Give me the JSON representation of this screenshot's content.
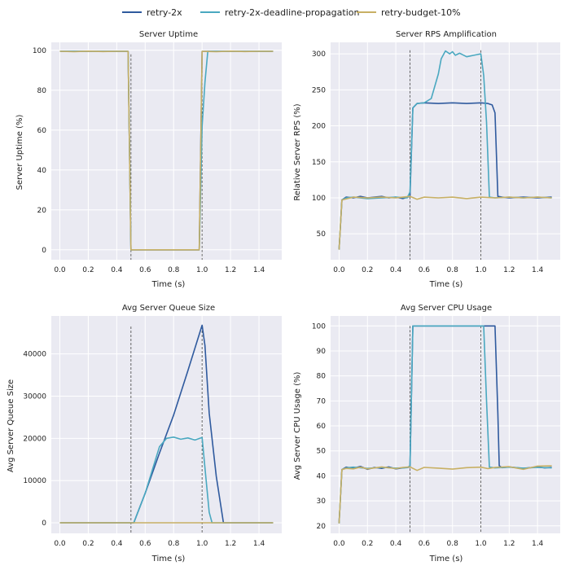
{
  "legend": [
    {
      "name": "retry-2x",
      "color": "#2f5a9e"
    },
    {
      "name": "retry-2x-deadline-propagation",
      "color": "#4aa8c0"
    },
    {
      "name": "retry-budget-10%",
      "color": "#c8b064"
    }
  ],
  "chart_data": [
    {
      "type": "line",
      "title": "Server Uptime",
      "xlabel": "Time (s)",
      "ylabel": "Server Uptime (%)",
      "xlim": [
        -0.06,
        1.56
      ],
      "ylim": [
        -5,
        104
      ],
      "xticks": [
        0.0,
        0.2,
        0.4,
        0.6,
        0.8,
        1.0,
        1.2,
        1.4
      ],
      "xtick_labels": [
        "0.0",
        "0.2",
        "0.4",
        "0.6",
        "0.8",
        "1.0",
        "1.2",
        "1.4"
      ],
      "yticks": [
        0,
        20,
        40,
        60,
        80,
        100
      ],
      "ytick_labels": [
        "0",
        "20",
        "40",
        "60",
        "80",
        "100"
      ],
      "vlines": [
        0.5,
        1.0
      ],
      "vline_top": 98,
      "series": [
        {
          "name": "retry-2x",
          "x": [
            0,
            0.48,
            0.5,
            0.98,
            1.0,
            1.02,
            1.5
          ],
          "y": [
            99.5,
            99.5,
            0,
            0,
            99.5,
            99.5,
            99.5
          ]
        },
        {
          "name": "retry-2x-deadline-propagation",
          "x": [
            0,
            0.48,
            0.5,
            0.98,
            1.0,
            1.02,
            1.04,
            1.06,
            1.5
          ],
          "y": [
            99.5,
            99.5,
            0,
            0,
            62,
            84,
            99.5,
            99.5,
            99.5
          ]
        },
        {
          "name": "retry-budget-10%",
          "x": [
            0,
            0.1,
            0.2,
            0.3,
            0.4,
            0.48,
            0.5,
            0.98,
            1.0,
            1.1,
            1.2,
            1.3,
            1.4,
            1.5
          ],
          "y": [
            99.5,
            99.3,
            99.6,
            99.4,
            99.5,
            99.5,
            0,
            0,
            99.5,
            99.3,
            99.6,
            99.4,
            99.5,
            99.5
          ]
        }
      ]
    },
    {
      "type": "line",
      "title": "Server RPS Amplification",
      "xlabel": "Time (s)",
      "ylabel": "Relative Server RPS (%)",
      "xlim": [
        -0.06,
        1.56
      ],
      "ylim": [
        14,
        316
      ],
      "xticks": [
        0.0,
        0.2,
        0.4,
        0.6,
        0.8,
        1.0,
        1.2,
        1.4
      ],
      "xtick_labels": [
        "0.0",
        "0.2",
        "0.4",
        "0.6",
        "0.8",
        "1.0",
        "1.2",
        "1.4"
      ],
      "yticks": [
        50,
        100,
        150,
        200,
        250,
        300
      ],
      "ytick_labels": [
        "50",
        "100",
        "150",
        "200",
        "250",
        "300"
      ],
      "vlines": [
        0.5,
        1.0
      ],
      "vline_top": 305,
      "series": [
        {
          "name": "retry-2x",
          "x": [
            0,
            0.02,
            0.05,
            0.1,
            0.15,
            0.2,
            0.25,
            0.3,
            0.35,
            0.4,
            0.45,
            0.5,
            0.52,
            0.55,
            0.6,
            0.7,
            0.8,
            0.9,
            1.0,
            1.05,
            1.08,
            1.1,
            1.12,
            1.15,
            1.2,
            1.3,
            1.4,
            1.5
          ],
          "y": [
            28,
            97,
            101,
            100,
            102,
            100,
            101,
            102,
            100,
            101,
            99,
            102,
            225,
            231,
            232,
            231,
            232,
            231,
            232,
            231,
            229,
            218,
            102,
            101,
            100,
            101,
            100,
            101
          ]
        },
        {
          "name": "retry-2x-deadline-propagation",
          "x": [
            0,
            0.02,
            0.05,
            0.1,
            0.2,
            0.3,
            0.4,
            0.48,
            0.5,
            0.52,
            0.55,
            0.6,
            0.65,
            0.7,
            0.72,
            0.75,
            0.78,
            0.8,
            0.82,
            0.85,
            0.9,
            0.95,
            1.0,
            1.02,
            1.04,
            1.06,
            1.1,
            1.2,
            1.3,
            1.4,
            1.5
          ],
          "y": [
            28,
            97,
            100,
            101,
            99,
            100,
            101,
            100,
            108,
            225,
            231,
            232,
            238,
            272,
            293,
            304,
            300,
            303,
            298,
            301,
            296,
            298,
            300,
            270,
            205,
            101,
            100,
            101,
            100,
            101,
            100
          ]
        },
        {
          "name": "retry-budget-10%",
          "x": [
            0,
            0.02,
            0.1,
            0.2,
            0.3,
            0.4,
            0.45,
            0.5,
            0.55,
            0.6,
            0.7,
            0.8,
            0.9,
            1.0,
            1.1,
            1.2,
            1.3,
            1.4,
            1.5
          ],
          "y": [
            28,
            97,
            101,
            100,
            101,
            100,
            101,
            102,
            98,
            101,
            100,
            101,
            99,
            101,
            100,
            101,
            100,
            101,
            100
          ]
        }
      ]
    },
    {
      "type": "line",
      "title": "Avg Server Queue Size",
      "xlabel": "Time (s)",
      "ylabel": "Avg Server Queue Size",
      "xlim": [
        -0.06,
        1.56
      ],
      "ylim": [
        -2500,
        49000
      ],
      "xticks": [
        0.0,
        0.2,
        0.4,
        0.6,
        0.8,
        1.0,
        1.2,
        1.4
      ],
      "xtick_labels": [
        "0.0",
        "0.2",
        "0.4",
        "0.6",
        "0.8",
        "1.0",
        "1.2",
        "1.4"
      ],
      "yticks": [
        0,
        10000,
        20000,
        30000,
        40000
      ],
      "ytick_labels": [
        "0",
        "10000",
        "20000",
        "30000",
        "40000"
      ],
      "vlines": [
        0.5,
        1.0
      ],
      "vline_top": 46500,
      "series": [
        {
          "name": "retry-2x",
          "x": [
            0,
            0.5,
            0.52,
            0.6,
            0.7,
            0.8,
            0.9,
            1.0,
            1.02,
            1.05,
            1.1,
            1.15,
            1.5
          ],
          "y": [
            0,
            0,
            0,
            7000,
            16500,
            25500,
            36000,
            46800,
            42000,
            26000,
            11000,
            0,
            0
          ]
        },
        {
          "name": "retry-2x-deadline-propagation",
          "x": [
            0,
            0.5,
            0.52,
            0.6,
            0.7,
            0.75,
            0.8,
            0.85,
            0.9,
            0.95,
            1.0,
            1.02,
            1.05,
            1.07,
            1.5
          ],
          "y": [
            0,
            0,
            0,
            7000,
            18000,
            20000,
            20300,
            19800,
            20100,
            19600,
            20200,
            13000,
            2500,
            0,
            0
          ]
        },
        {
          "name": "retry-budget-10%",
          "x": [
            0,
            1.5
          ],
          "y": [
            0,
            0
          ]
        }
      ]
    },
    {
      "type": "line",
      "title": "Avg Server CPU Usage",
      "xlabel": "Time (s)",
      "ylabel": "Avg Server CPU Usage (%)",
      "xlim": [
        -0.06,
        1.56
      ],
      "ylim": [
        17,
        104
      ],
      "xticks": [
        0.0,
        0.2,
        0.4,
        0.6,
        0.8,
        1.0,
        1.2,
        1.4
      ],
      "xtick_labels": [
        "0.0",
        "0.2",
        "0.4",
        "0.6",
        "0.8",
        "1.0",
        "1.2",
        "1.4"
      ],
      "yticks": [
        20,
        30,
        40,
        50,
        60,
        70,
        80,
        90,
        100
      ],
      "ytick_labels": [
        "20",
        "30",
        "40",
        "50",
        "60",
        "70",
        "80",
        "90",
        "100"
      ],
      "vlines": [
        0.5,
        1.0
      ],
      "vline_top": 100,
      "series": [
        {
          "name": "retry-2x",
          "x": [
            0,
            0.02,
            0.05,
            0.1,
            0.15,
            0.2,
            0.25,
            0.3,
            0.35,
            0.4,
            0.45,
            0.5,
            0.52,
            0.6,
            0.8,
            1.0,
            1.05,
            1.1,
            1.12,
            1.13,
            1.15,
            1.2,
            1.3,
            1.4,
            1.45,
            1.5
          ],
          "y": [
            21,
            42.5,
            43.5,
            43,
            43.8,
            42.6,
            43.4,
            43,
            43.6,
            42.8,
            43.2,
            43.5,
            100,
            100,
            100,
            100,
            100,
            100,
            65,
            44,
            43.3,
            43.6,
            43,
            43.6,
            43.2,
            43.4
          ]
        },
        {
          "name": "retry-2x-deadline-propagation",
          "x": [
            0,
            0.02,
            0.05,
            0.1,
            0.2,
            0.3,
            0.4,
            0.48,
            0.5,
            0.52,
            0.6,
            0.8,
            1.0,
            1.02,
            1.04,
            1.06,
            1.1,
            1.2,
            1.3,
            1.4,
            1.5
          ],
          "y": [
            21,
            42.5,
            43.2,
            43.5,
            43,
            43.4,
            43.1,
            43.3,
            44,
            100,
            100,
            100,
            100,
            100,
            70,
            43.5,
            43.2,
            43.5,
            43.1,
            43.4,
            43.2
          ]
        },
        {
          "name": "retry-budget-10%",
          "x": [
            0,
            0.02,
            0.05,
            0.1,
            0.15,
            0.2,
            0.3,
            0.4,
            0.45,
            0.5,
            0.55,
            0.6,
            0.7,
            0.8,
            0.9,
            1.0,
            1.05,
            1.1,
            1.2,
            1.3,
            1.4,
            1.5
          ],
          "y": [
            21,
            42.5,
            43,
            42.8,
            43.5,
            42.8,
            43.6,
            42.9,
            43.4,
            43.6,
            42.2,
            43.4,
            43.1,
            42.7,
            43.3,
            43.5,
            42.9,
            43.4,
            43.7,
            42.6,
            43.9,
            44.0
          ]
        }
      ]
    }
  ]
}
